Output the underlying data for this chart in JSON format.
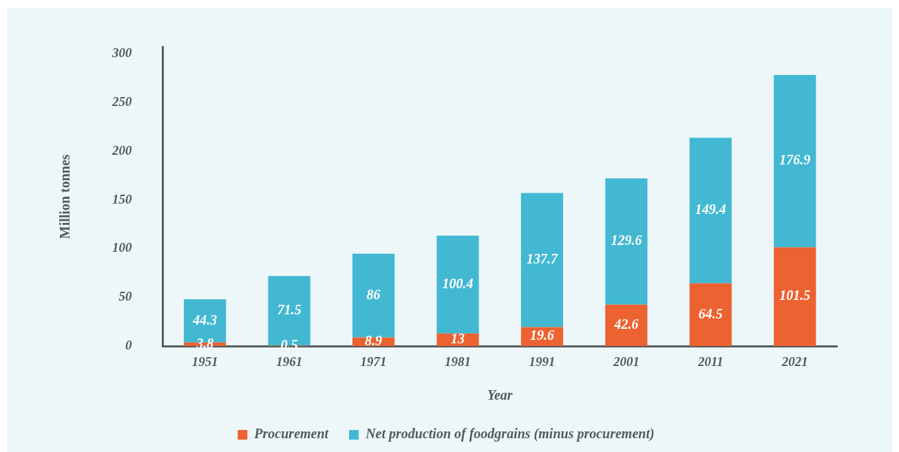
{
  "chart_data": {
    "type": "bar",
    "stacked": true,
    "xlabel": "Year",
    "ylabel": "Million tonnes",
    "categories": [
      "1951",
      "1961",
      "1971",
      "1981",
      "1991",
      "2001",
      "2011",
      "2021"
    ],
    "series": [
      {
        "name": "Procurement",
        "color": "#ec6231",
        "values": [
          3.8,
          0.5,
          8.9,
          13,
          19.6,
          42.6,
          64.5,
          101.5
        ]
      },
      {
        "name": "Net production of foodgrains (minus procurement)",
        "color": "#42b8d2",
        "values": [
          44.3,
          71.5,
          86,
          100.4,
          137.7,
          129.6,
          149.4,
          176.9
        ]
      }
    ],
    "ylim": [
      0,
      307
    ],
    "yticks": [
      0,
      50,
      100,
      150,
      200,
      250,
      300
    ],
    "grid": false,
    "legend": "bottom",
    "data_labels": true
  }
}
